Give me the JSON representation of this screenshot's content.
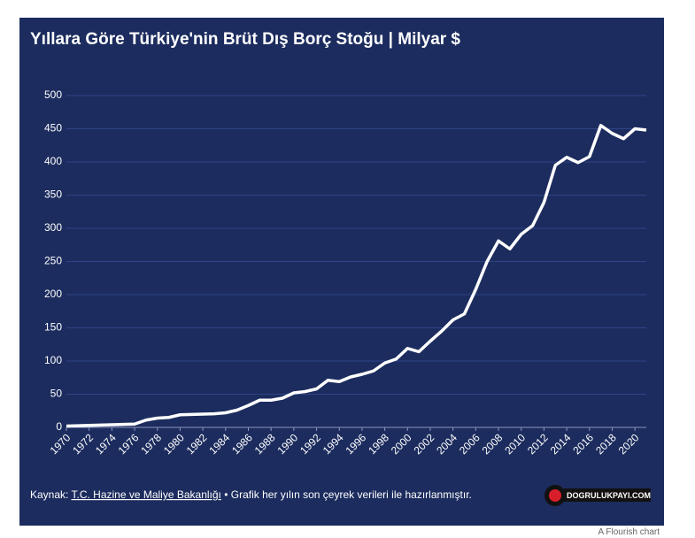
{
  "chart_data": {
    "type": "line",
    "title": "Yıllara Göre Türkiye'nin Brüt Dış Borç Stoğu | Milyar $",
    "source_prefix": "Kaynak:",
    "source_link": "T.C. Hazine ve Maliye Bakanlığı",
    "source_suffix": "• Grafik her yılın son çeyrek verileri ile hazırlanmıştır.",
    "logo": "DOGRULUKPAYI.COM",
    "credit": "A Flourish chart",
    "x": [
      1970,
      1971,
      1972,
      1973,
      1974,
      1975,
      1976,
      1977,
      1978,
      1979,
      1980,
      1981,
      1982,
      1983,
      1984,
      1985,
      1986,
      1987,
      1988,
      1989,
      1990,
      1991,
      1992,
      1993,
      1994,
      1995,
      1996,
      1997,
      1998,
      1999,
      2000,
      2001,
      2002,
      2003,
      2004,
      2005,
      2006,
      2007,
      2008,
      2009,
      2010,
      2011,
      2012,
      2013,
      2014,
      2015,
      2016,
      2017,
      2018,
      2019,
      2020,
      2021
    ],
    "series": [
      {
        "name": "Brüt Dış Borç Stoğu",
        "color": "#ffffff",
        "values": [
          2,
          2.5,
          3,
          3.5,
          4,
          4.5,
          5,
          11,
          14,
          15,
          19,
          19.5,
          20,
          20.5,
          22,
          26,
          33,
          41,
          41,
          44,
          52,
          54,
          58,
          71,
          69,
          76,
          80,
          85,
          97,
          103,
          119,
          114,
          130,
          145,
          162,
          171,
          208,
          250,
          281,
          269,
          291,
          304,
          339,
          395,
          407,
          399,
          408,
          455,
          443,
          435,
          450,
          448
        ]
      }
    ],
    "xlim": [
      1970,
      2021
    ],
    "xticks": [
      1970,
      1972,
      1974,
      1976,
      1978,
      1980,
      1982,
      1984,
      1986,
      1988,
      1990,
      1992,
      1994,
      1996,
      1998,
      2000,
      2002,
      2004,
      2006,
      2008,
      2010,
      2012,
      2014,
      2016,
      2018,
      2020
    ],
    "ylim": [
      0,
      500
    ],
    "yticks": [
      0,
      50,
      100,
      150,
      200,
      250,
      300,
      350,
      400,
      450,
      500
    ],
    "grid": true
  }
}
